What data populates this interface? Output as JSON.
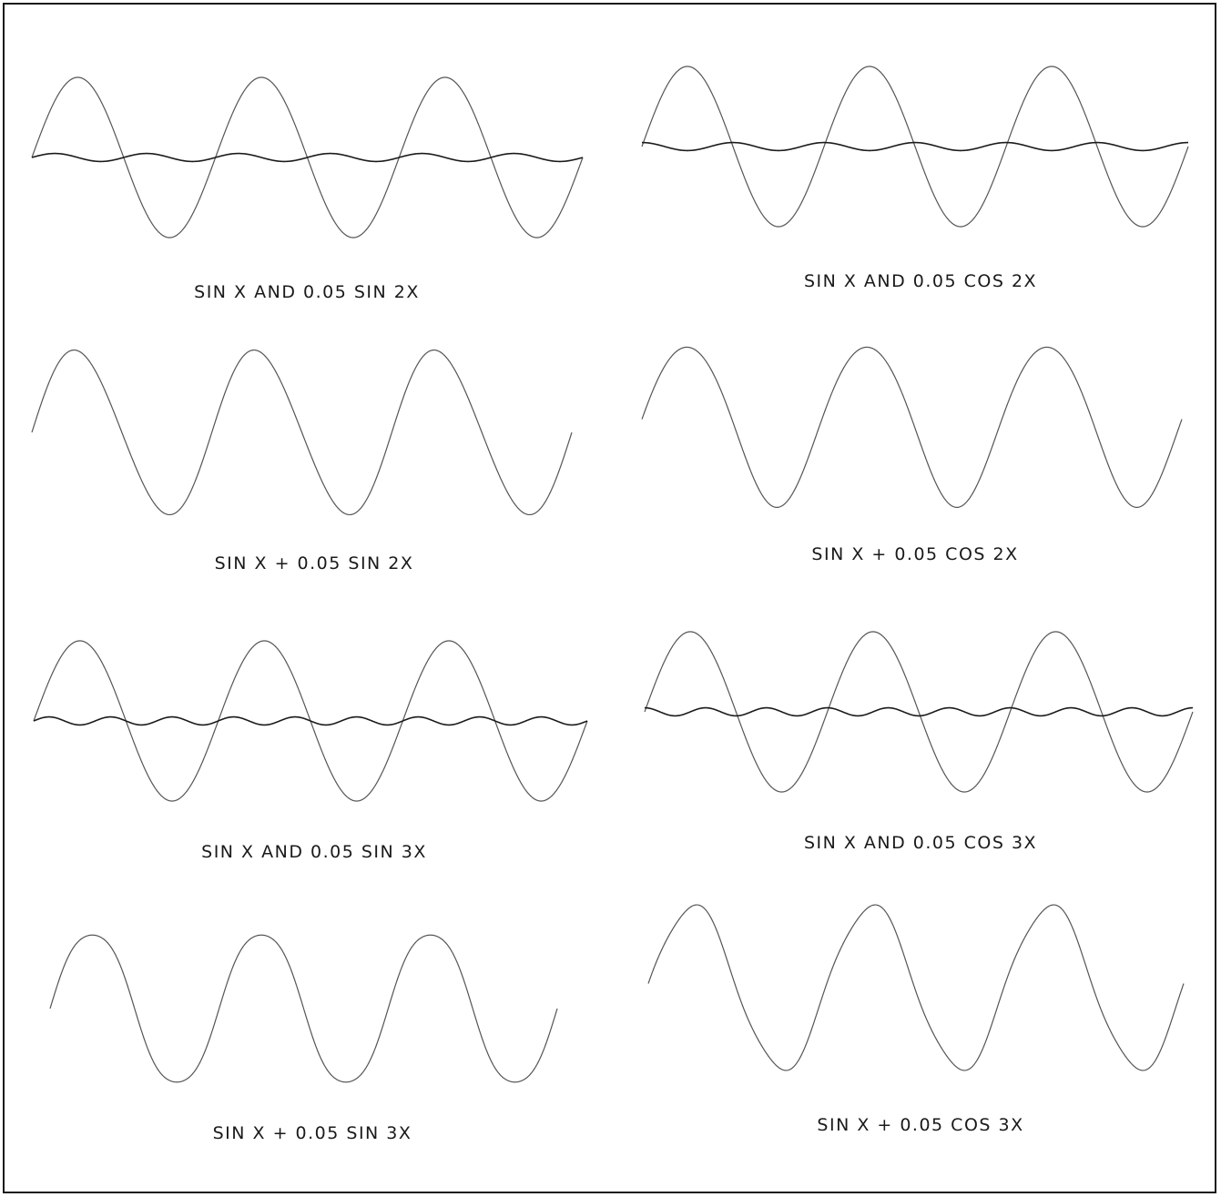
{
  "page": {
    "colors": {
      "background": "#ffffff",
      "ink": "#1a1a1a",
      "faint_ink": "#555555"
    }
  },
  "chart_data": [
    {
      "type": "line",
      "title": "SIN X AND 0.05 SIN 2X",
      "cycles": 3,
      "series": [
        {
          "formula": "sin(x)",
          "amplitude": 1.0,
          "harmonic": 1,
          "phase": "sin"
        },
        {
          "formula": "0.05 sin(2x)",
          "amplitude": 0.05,
          "harmonic": 2,
          "phase": "sin"
        }
      ]
    },
    {
      "type": "line",
      "title": "SIN X AND 0.05 COS 2X",
      "cycles": 3,
      "series": [
        {
          "formula": "sin(x)",
          "amplitude": 1.0,
          "harmonic": 1,
          "phase": "sin"
        },
        {
          "formula": "0.05 cos(2x)",
          "amplitude": 0.05,
          "harmonic": 2,
          "phase": "cos"
        }
      ]
    },
    {
      "type": "line",
      "title": "SIN X + 0.05 SIN 2X",
      "cycles": 3,
      "series": [
        {
          "formula": "sin(x) + 0.05 sin(2x)",
          "amplitude": 1.0,
          "harmonic": 1,
          "added_amplitude": 0.05,
          "added_harmonic": 2,
          "added_phase": "sin"
        }
      ]
    },
    {
      "type": "line",
      "title": "SIN X + 0.05 COS 2X",
      "cycles": 3,
      "series": [
        {
          "formula": "sin(x) + 0.05 cos(2x)",
          "amplitude": 1.0,
          "harmonic": 1,
          "added_amplitude": 0.05,
          "added_harmonic": 2,
          "added_phase": "cos"
        }
      ]
    },
    {
      "type": "line",
      "title": "SIN X AND 0.05 SIN 3X",
      "cycles": 3,
      "series": [
        {
          "formula": "sin(x)",
          "amplitude": 1.0,
          "harmonic": 1,
          "phase": "sin"
        },
        {
          "formula": "0.05 sin(3x)",
          "amplitude": 0.05,
          "harmonic": 3,
          "phase": "sin"
        }
      ]
    },
    {
      "type": "line",
      "title": "SIN X AND 0.05 COS 3X",
      "cycles": 3,
      "series": [
        {
          "formula": "sin(x)",
          "amplitude": 1.0,
          "harmonic": 1,
          "phase": "sin"
        },
        {
          "formula": "0.05 cos(3x)",
          "amplitude": 0.05,
          "harmonic": 3,
          "phase": "cos"
        }
      ]
    },
    {
      "type": "line",
      "title": "SIN X + 0.05 SIN 3X",
      "cycles": 3,
      "series": [
        {
          "formula": "sin(x) + 0.05 sin(3x)",
          "amplitude": 1.0,
          "harmonic": 1,
          "added_amplitude": 0.05,
          "added_harmonic": 3,
          "added_phase": "sin"
        }
      ]
    },
    {
      "type": "line",
      "title": "SIN X + 0.05 COS 3X",
      "cycles": 3,
      "series": [
        {
          "formula": "sin(x) + 0.05 cos(3x)",
          "amplitude": 1.0,
          "harmonic": 1,
          "added_amplitude": 0.05,
          "added_harmonic": 3,
          "added_phase": "cos"
        }
      ]
    }
  ]
}
